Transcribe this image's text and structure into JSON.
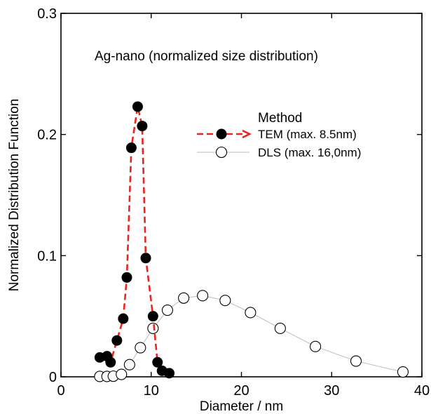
{
  "chart_data": {
    "type": "scatter",
    "annotation": "Ag-nano (normalized size distribution)",
    "xlabel": "Diameter / nm",
    "ylabel": "Normalized Distribution Function",
    "xlim": [
      0,
      40
    ],
    "ylim": [
      0,
      0.3
    ],
    "x_ticks": [
      0,
      10,
      20,
      30,
      40
    ],
    "x_tick_labels": [
      "0",
      "10",
      "20",
      "30",
      "40"
    ],
    "y_ticks": [
      0,
      0.1,
      0.2,
      0.3
    ],
    "y_tick_labels": [
      "0",
      "0.1",
      "0.2",
      "0.3"
    ],
    "grid": false,
    "legend": {
      "title": "Method",
      "placement": "upper-right"
    },
    "series": [
      {
        "name": "TEM (max. 8.5nm)",
        "marker": "filled-circle",
        "line": "dashed",
        "color": "#e8251f",
        "marker_color": "#000000",
        "points": [
          [
            4.3,
            0.016
          ],
          [
            5.1,
            0.017
          ],
          [
            5.5,
            0.012
          ],
          [
            6.2,
            0.03
          ],
          [
            6.9,
            0.048
          ],
          [
            7.3,
            0.082
          ],
          [
            7.8,
            0.189
          ],
          [
            8.5,
            0.223
          ],
          [
            9.0,
            0.207
          ],
          [
            9.4,
            0.098
          ],
          [
            10.2,
            0.05
          ],
          [
            10.7,
            0.012
          ],
          [
            11.2,
            0.005
          ],
          [
            12.0,
            0.003
          ]
        ]
      },
      {
        "name": "DLS (max. 16,0nm)",
        "marker": "open-circle",
        "line": "solid",
        "color": "#bbbbbb",
        "marker_color": "#000000",
        "points": [
          [
            4.3,
            0.0003
          ],
          [
            5.1,
            0.0003
          ],
          [
            5.8,
            0.0005
          ],
          [
            6.7,
            0.002
          ],
          [
            7.6,
            0.01
          ],
          [
            8.8,
            0.024
          ],
          [
            10.2,
            0.04
          ],
          [
            11.8,
            0.055
          ],
          [
            13.6,
            0.065
          ],
          [
            15.7,
            0.067
          ],
          [
            18.2,
            0.063
          ],
          [
            21.0,
            0.053
          ],
          [
            24.3,
            0.04
          ],
          [
            28.2,
            0.025
          ],
          [
            32.7,
            0.013
          ],
          [
            37.9,
            0.004
          ]
        ]
      }
    ]
  }
}
